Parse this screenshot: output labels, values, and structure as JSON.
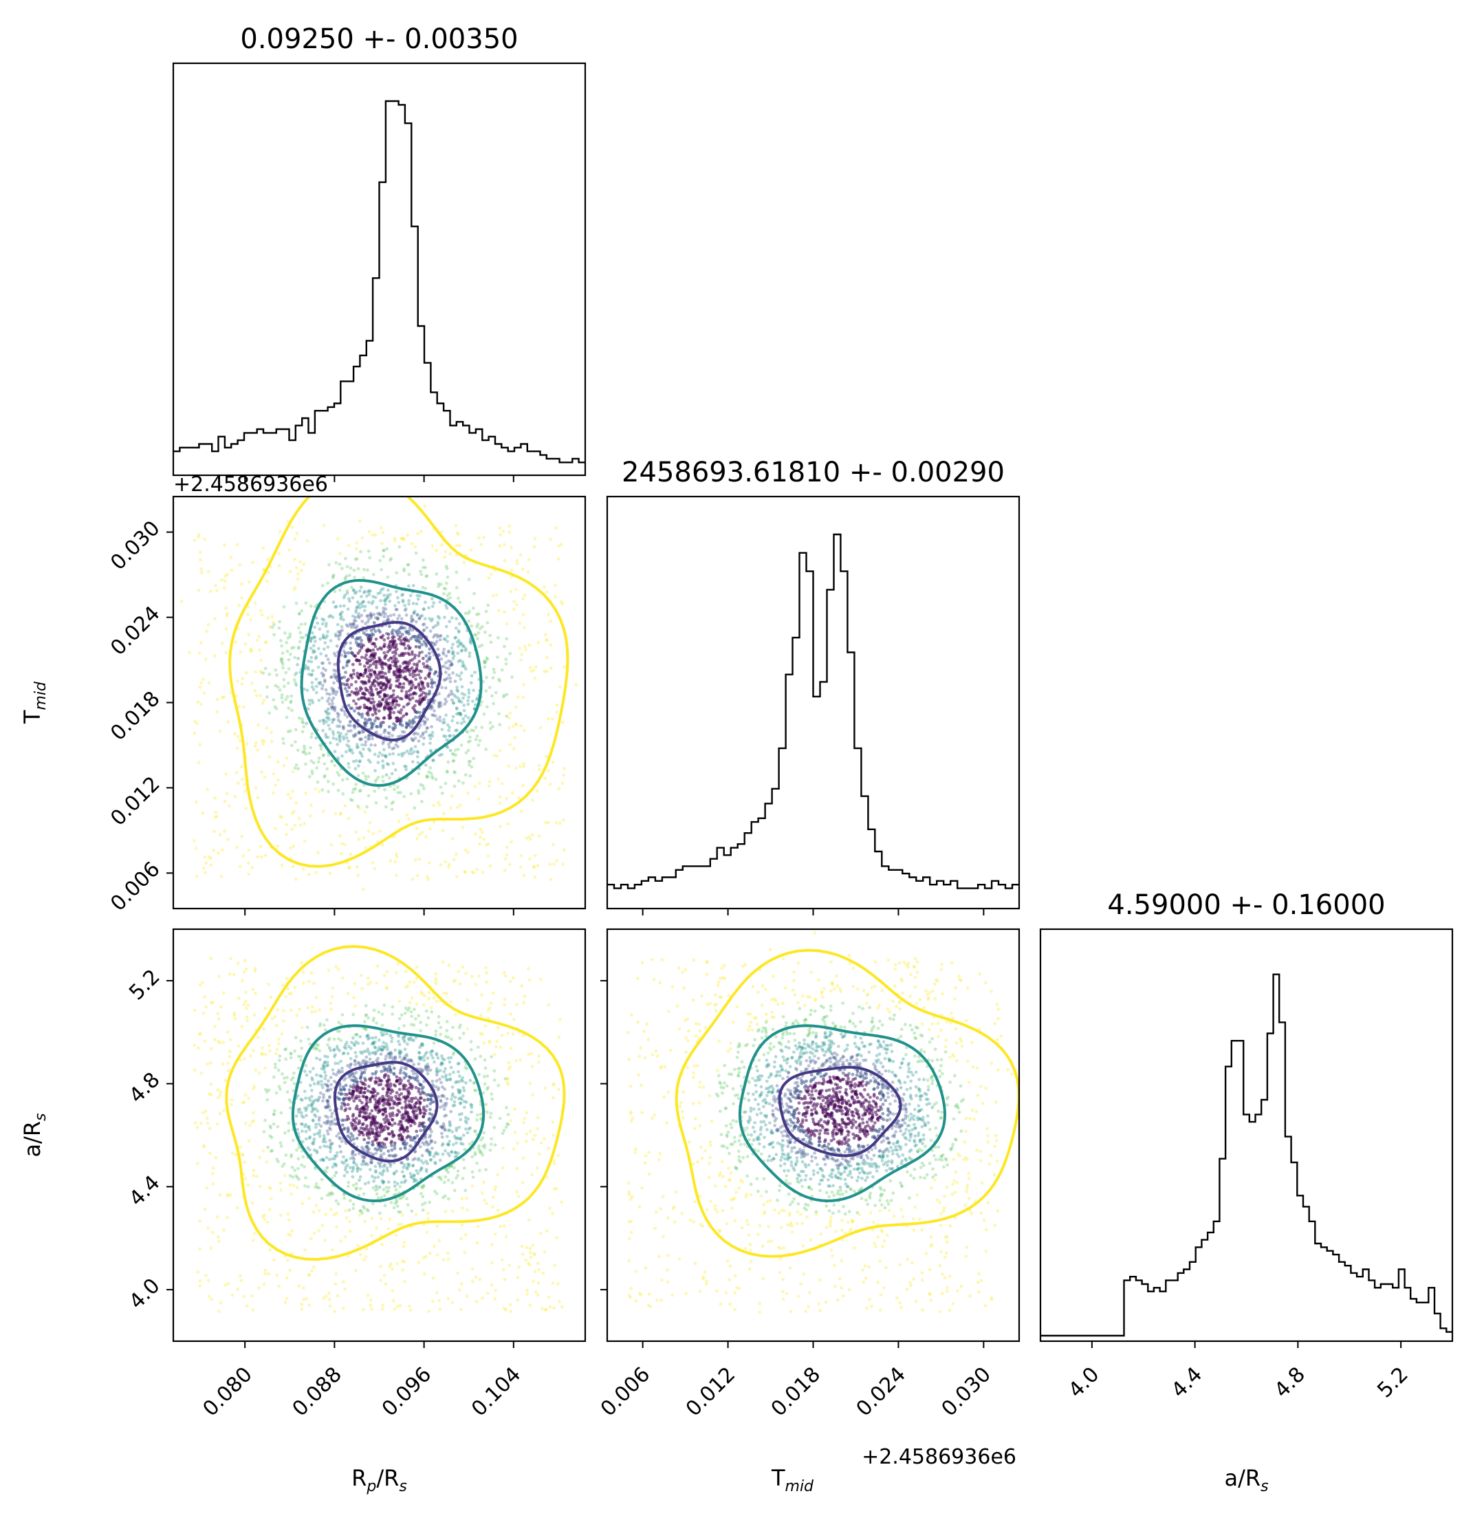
{
  "chart_data": {
    "type": "corner",
    "parameters": [
      {
        "key": "rp",
        "label_main": "R",
        "label_sub1": "p",
        "label_mid": "/R",
        "label_sub2": "s",
        "range": [
          0.0736,
          0.1104
        ],
        "ticks": [
          0.08,
          0.088,
          0.096,
          0.104
        ],
        "tick_labels": [
          "0.080",
          "0.088",
          "0.096",
          "0.104"
        ],
        "title": "0.09250 +- 0.00350",
        "offset": ""
      },
      {
        "key": "tmid",
        "label_main": "T",
        "label_sub1": "mid",
        "label_mid": "",
        "label_sub2": "",
        "range": [
          0.0035,
          0.0325
        ],
        "ticks": [
          0.006,
          0.012,
          0.018,
          0.024,
          0.03
        ],
        "tick_labels": [
          "0.006",
          "0.012",
          "0.018",
          "0.024",
          "0.030"
        ],
        "title": "2458693.61810 +- 0.00290",
        "offset": "+2.4586936e6"
      },
      {
        "key": "ars",
        "label_main": "a/R",
        "label_sub1": "s",
        "label_mid": "",
        "label_sub2": "",
        "range": [
          3.8,
          5.4
        ],
        "ticks": [
          4.0,
          4.4,
          4.8,
          5.2
        ],
        "tick_labels": [
          "4.0",
          "4.4",
          "4.8",
          "5.2"
        ],
        "title": "4.59000 +- 0.16000",
        "offset": ""
      }
    ],
    "histograms": {
      "rp": [
        0.05,
        0.06,
        0.06,
        0.06,
        0.07,
        0.07,
        0.05,
        0.09,
        0.06,
        0.07,
        0.08,
        0.1,
        0.1,
        0.11,
        0.1,
        0.1,
        0.11,
        0.11,
        0.08,
        0.12,
        0.14,
        0.1,
        0.16,
        0.16,
        0.17,
        0.18,
        0.24,
        0.24,
        0.28,
        0.31,
        0.35,
        0.52,
        0.78,
        1.0,
        1.0,
        0.99,
        0.94,
        0.66,
        0.39,
        0.29,
        0.21,
        0.18,
        0.16,
        0.12,
        0.13,
        0.12,
        0.1,
        0.11,
        0.08,
        0.09,
        0.07,
        0.06,
        0.05,
        0.06,
        0.07,
        0.05,
        0.05,
        0.04,
        0.03,
        0.03,
        0.02,
        0.02,
        0.03,
        0.02
      ],
      "tmid": [
        0.05,
        0.04,
        0.05,
        0.04,
        0.05,
        0.06,
        0.07,
        0.06,
        0.07,
        0.07,
        0.09,
        0.1,
        0.1,
        0.1,
        0.1,
        0.12,
        0.15,
        0.13,
        0.15,
        0.16,
        0.19,
        0.22,
        0.23,
        0.27,
        0.31,
        0.42,
        0.62,
        0.72,
        0.95,
        0.9,
        0.56,
        0.6,
        0.85,
        1.0,
        0.9,
        0.68,
        0.42,
        0.29,
        0.2,
        0.14,
        0.1,
        0.09,
        0.09,
        0.08,
        0.07,
        0.06,
        0.07,
        0.05,
        0.06,
        0.05,
        0.06,
        0.04,
        0.04,
        0.04,
        0.05,
        0.04,
        0.06,
        0.05,
        0.04,
        0.05
      ],
      "ars": [
        0.0,
        0.0,
        0.0,
        0.0,
        0.0,
        0.0,
        0.0,
        0.0,
        0.0,
        0.0,
        0.0,
        0.0,
        0.0,
        0.0,
        0.15,
        0.16,
        0.15,
        0.14,
        0.12,
        0.13,
        0.12,
        0.15,
        0.15,
        0.17,
        0.18,
        0.2,
        0.24,
        0.26,
        0.28,
        0.31,
        0.48,
        0.73,
        0.8,
        0.8,
        0.6,
        0.58,
        0.6,
        0.64,
        0.82,
        0.98,
        0.85,
        0.54,
        0.47,
        0.38,
        0.35,
        0.31,
        0.25,
        0.24,
        0.23,
        0.22,
        0.2,
        0.19,
        0.17,
        0.16,
        0.18,
        0.15,
        0.13,
        0.14,
        0.14,
        0.13,
        0.18,
        0.13,
        0.1,
        0.09,
        0.09,
        0.13,
        0.06,
        0.02,
        0.01
      ]
    },
    "contour_colors": [
      "#443983",
      "#21918c",
      "#fde725"
    ],
    "point_colors": [
      "#440154",
      "#3b528b",
      "#21918c",
      "#5ec962",
      "#fde725"
    ],
    "axis_titles": {
      "rp": "R<sub>p</sub>/R<sub>s</sub>",
      "tmid": "T<sub>mid</sub>",
      "ars": "a/R<sub>s</sub>"
    }
  }
}
